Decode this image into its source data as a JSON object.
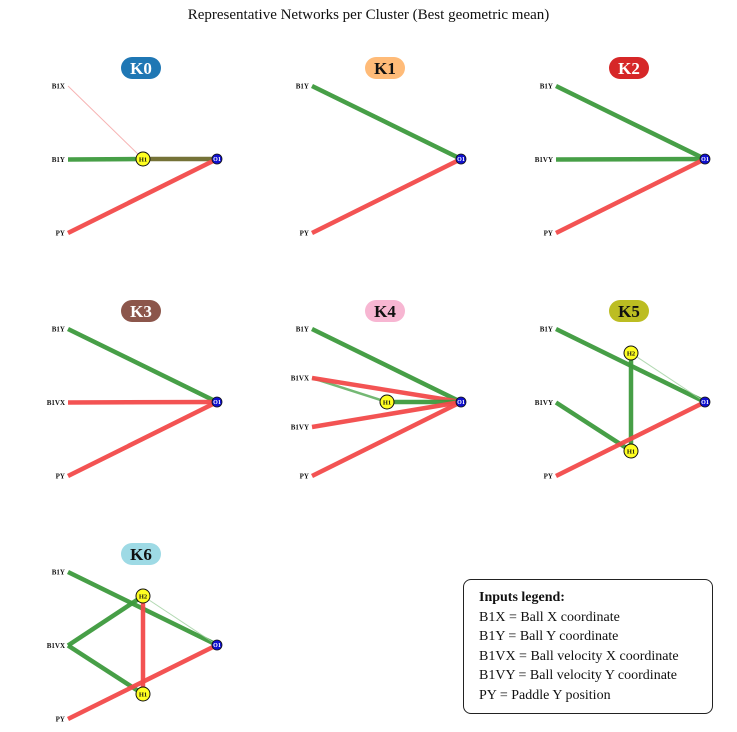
{
  "title": "Representative Networks per Cluster (Best geometric mean)",
  "colors": {
    "positive": "#3d9a3d",
    "negative": "#f24a4a",
    "mixed": "#6e6a2c",
    "weak_negative": "#f4a0a0",
    "weak_positive": "#9fcf9f",
    "medium_positive": "#6db46d",
    "hidden_node": "#ffff22",
    "output_node": "#1010d0"
  },
  "panels": [
    {
      "label": "K0",
      "badge_color": "#1f77b4",
      "badge_text_color": "#ffffff",
      "inputs": [
        "B1X",
        "B1Y",
        "PY"
      ],
      "hidden": [
        "H1"
      ],
      "edges": [
        [
          "B1X",
          "H1",
          "weak_negative",
          1
        ],
        [
          "B1Y",
          "H1",
          "positive",
          4.5
        ],
        [
          "H1",
          "O1",
          "mixed",
          4.5
        ],
        [
          "PY",
          "O1",
          "negative",
          4.5
        ]
      ]
    },
    {
      "label": "K1",
      "badge_color": "#ffbb78",
      "badge_text_color": "#111111",
      "inputs": [
        "B1Y",
        "PY"
      ],
      "hidden": [],
      "edges": [
        [
          "B1Y",
          "O1",
          "positive",
          4.5
        ],
        [
          "PY",
          "O1",
          "negative",
          4.5
        ]
      ]
    },
    {
      "label": "K2",
      "badge_color": "#d62728",
      "badge_text_color": "#ffffff",
      "inputs": [
        "B1Y",
        "B1VY",
        "PY"
      ],
      "hidden": [],
      "edges": [
        [
          "B1Y",
          "O1",
          "positive",
          4.5
        ],
        [
          "B1VY",
          "O1",
          "positive",
          4.5
        ],
        [
          "PY",
          "O1",
          "negative",
          4.5
        ]
      ]
    },
    {
      "label": "K3",
      "badge_color": "#8c564b",
      "badge_text_color": "#ffffff",
      "inputs": [
        "B1Y",
        "B1VX",
        "PY"
      ],
      "hidden": [],
      "edges": [
        [
          "B1Y",
          "O1",
          "positive",
          4.5
        ],
        [
          "B1VX",
          "O1",
          "negative",
          4.5
        ],
        [
          "PY",
          "O1",
          "negative",
          4.5
        ]
      ]
    },
    {
      "label": "K4",
      "badge_color": "#f7b6d2",
      "badge_text_color": "#111111",
      "inputs": [
        "B1Y",
        "B1VX",
        "B1VY",
        "PY"
      ],
      "hidden": [
        "H1"
      ],
      "edges": [
        [
          "B1Y",
          "O1",
          "positive",
          4.5
        ],
        [
          "B1VX",
          "H1",
          "medium_positive",
          2.5
        ],
        [
          "B1VX",
          "O1",
          "negative",
          4.5
        ],
        [
          "H1",
          "O1",
          "positive",
          4.5
        ],
        [
          "B1VY",
          "O1",
          "negative",
          4.5
        ],
        [
          "PY",
          "O1",
          "negative",
          4.5
        ]
      ]
    },
    {
      "label": "K5",
      "badge_color": "#bcbd22",
      "badge_text_color": "#111111",
      "inputs": [
        "B1Y",
        "B1VY",
        "PY"
      ],
      "hidden": [
        "H1",
        "H2"
      ],
      "edges": [
        [
          "B1Y",
          "O1",
          "positive",
          4.5
        ],
        [
          "B1VY",
          "H1",
          "positive",
          4.5
        ],
        [
          "H1",
          "H2",
          "positive",
          4.5
        ],
        [
          "H2",
          "O1",
          "weak_positive",
          1
        ],
        [
          "PY",
          "O1",
          "negative",
          4.5
        ]
      ]
    },
    {
      "label": "K6",
      "badge_color": "#9edae5",
      "badge_text_color": "#111111",
      "inputs": [
        "B1Y",
        "B1VX",
        "PY"
      ],
      "hidden": [
        "H1",
        "H2"
      ],
      "edges": [
        [
          "B1Y",
          "O1",
          "positive",
          4.5
        ],
        [
          "B1VX",
          "H2",
          "positive",
          4.5
        ],
        [
          "B1VX",
          "H1",
          "positive",
          4.5
        ],
        [
          "H2",
          "H1",
          "negative",
          4.5
        ],
        [
          "H2",
          "O1",
          "weak_positive",
          1
        ],
        [
          "PY",
          "O1",
          "negative",
          4.5
        ]
      ]
    }
  ],
  "legend": {
    "title": "Inputs legend:",
    "items": [
      "B1X = Ball X coordinate",
      "B1Y = Ball Y coordinate",
      "B1VX = Ball velocity X coordinate",
      "B1VY = Ball velocity Y coordinate",
      "PY = Paddle Y position"
    ]
  }
}
